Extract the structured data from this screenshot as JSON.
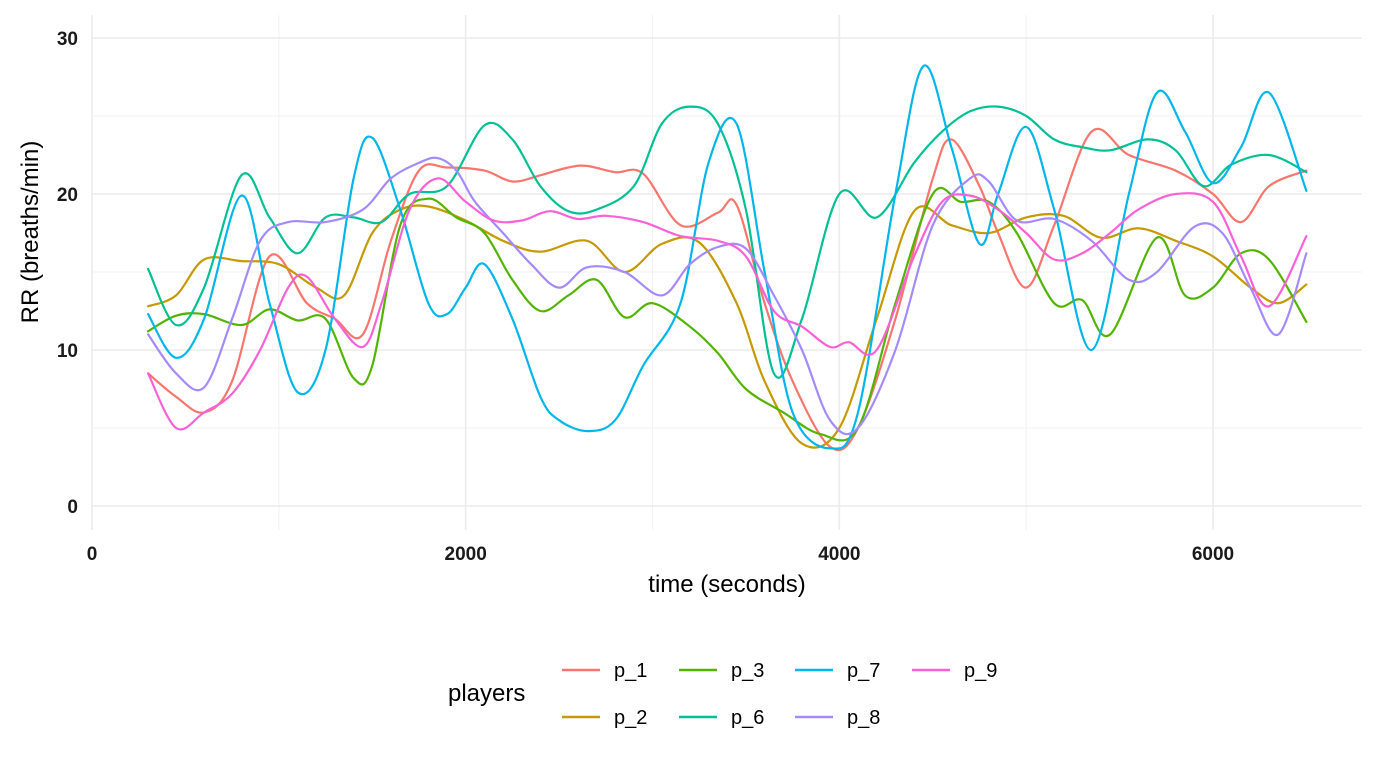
{
  "chart_data": {
    "type": "line",
    "title": "",
    "xlabel": "time (seconds)",
    "ylabel": "RR (breaths/min)",
    "xlim": [
      0,
      6800
    ],
    "ylim": [
      0,
      30
    ],
    "x_ticks": [
      0,
      2000,
      4000,
      6000
    ],
    "y_ticks": [
      0,
      10,
      20,
      30
    ],
    "grid": true,
    "legend": {
      "title": "players",
      "position": "bottom"
    },
    "series": [
      {
        "name": "p_1",
        "color": "#F8766D",
        "x": [
          300,
          450,
          600,
          750,
          950,
          1150,
          1300,
          1450,
          1600,
          1750,
          1900,
          2100,
          2250,
          2400,
          2550,
          2650,
          2800,
          2950,
          3150,
          3350,
          3450,
          3600,
          3750,
          3950,
          4100,
          4300,
          4500,
          4600,
          4750,
          4850,
          5000,
          5150,
          5350,
          5550,
          5800,
          6000,
          6150,
          6300,
          6500
        ],
        "y": [
          8.5,
          7,
          6,
          8,
          16,
          13,
          12,
          11,
          17,
          21.5,
          21.7,
          21.5,
          20.8,
          21.2,
          21.7,
          21.8,
          21.4,
          21.3,
          18,
          18.8,
          19.3,
          13,
          8,
          3.8,
          5,
          12,
          21,
          23.5,
          20.5,
          17.5,
          14,
          18,
          24,
          22.5,
          21.5,
          20,
          18.2,
          20.5,
          21.5
        ]
      },
      {
        "name": "p_2",
        "color": "#C49A00",
        "x": [
          300,
          450,
          600,
          800,
          1000,
          1200,
          1350,
          1500,
          1650,
          1800,
          2000,
          2200,
          2400,
          2650,
          2850,
          3050,
          3250,
          3450,
          3600,
          3800,
          4000,
          4200,
          4400,
          4600,
          4800,
          5000,
          5200,
          5400,
          5600,
          5800,
          6000,
          6200,
          6350,
          6500
        ],
        "y": [
          12.8,
          13.5,
          15.8,
          15.7,
          15.5,
          14,
          13.5,
          17.5,
          19,
          19.2,
          18.3,
          17,
          16.3,
          17,
          15,
          16.8,
          16.9,
          13,
          8,
          4,
          5,
          12,
          18.9,
          18,
          17.5,
          18.5,
          18.6,
          17.2,
          17.8,
          17,
          16,
          14,
          13,
          14.2
        ]
      },
      {
        "name": "p_3",
        "color": "#53B400",
        "x": [
          300,
          450,
          600,
          800,
          950,
          1100,
          1250,
          1400,
          1500,
          1650,
          1800,
          1950,
          2100,
          2250,
          2400,
          2550,
          2700,
          2850,
          3000,
          3200,
          3350,
          3500,
          3700,
          3900,
          4100,
          4300,
          4500,
          4650,
          4800,
          4950,
          5150,
          5300,
          5450,
          5700,
          5850,
          6000,
          6150,
          6300,
          6500
        ],
        "y": [
          11.2,
          12.2,
          12.3,
          11.6,
          12.6,
          11.9,
          12,
          8.2,
          9,
          18,
          19.7,
          18.5,
          17.5,
          14.5,
          12.5,
          13.5,
          14.5,
          12.1,
          13,
          11.5,
          9.8,
          7.5,
          6,
          4.6,
          5,
          13,
          20,
          19.5,
          19.5,
          17.5,
          13,
          13.2,
          11,
          17.2,
          13.5,
          14,
          16.2,
          15.8,
          11.8
        ]
      },
      {
        "name": "p_6",
        "color": "#00C094",
        "x": [
          300,
          450,
          600,
          800,
          950,
          1100,
          1250,
          1400,
          1550,
          1700,
          1900,
          2100,
          2250,
          2400,
          2550,
          2700,
          2900,
          3050,
          3200,
          3350,
          3500,
          3650,
          3800,
          4000,
          4200,
          4400,
          4550,
          4700,
          4850,
          5000,
          5150,
          5300,
          5450,
          5650,
          5800,
          5950,
          6100,
          6300,
          6500
        ],
        "y": [
          15.2,
          11.6,
          14,
          21.2,
          18.5,
          16.2,
          18.5,
          18.5,
          18.2,
          20,
          20.5,
          24.4,
          23.5,
          20.5,
          18.9,
          19,
          20.5,
          24.5,
          25.6,
          24.5,
          19,
          8.5,
          12,
          20,
          18.5,
          22,
          24,
          25.3,
          25.6,
          25,
          23.5,
          23,
          22.8,
          23.5,
          22.8,
          20.5,
          21.9,
          22.5,
          21.4
        ]
      },
      {
        "name": "p_7",
        "color": "#00B6EB",
        "x": [
          300,
          450,
          600,
          800,
          950,
          1100,
          1250,
          1400,
          1500,
          1650,
          1800,
          1900,
          2000,
          2100,
          2250,
          2400,
          2500,
          2650,
          2800,
          2950,
          3150,
          3300,
          3450,
          3600,
          3750,
          3950,
          4100,
          4300,
          4450,
          4600,
          4750,
          4850,
          5000,
          5150,
          5350,
          5550,
          5700,
          5850,
          6000,
          6150,
          6300,
          6500
        ],
        "y": [
          12.3,
          9.5,
          12,
          19.9,
          13,
          7.3,
          10,
          21,
          23.6,
          19,
          13,
          12.3,
          14,
          15.5,
          12,
          7,
          5.5,
          4.8,
          5.5,
          9,
          13,
          22,
          24.5,
          15,
          6,
          3.7,
          6,
          20,
          28.2,
          23,
          16.8,
          20,
          24.3,
          19,
          10,
          20,
          26.5,
          24,
          20.7,
          23,
          26.5,
          20.2
        ]
      },
      {
        "name": "p_8",
        "color": "#A58AFF",
        "x": [
          300,
          450,
          600,
          750,
          900,
          1050,
          1250,
          1450,
          1600,
          1750,
          1850,
          1950,
          2050,
          2200,
          2350,
          2500,
          2650,
          2850,
          3050,
          3200,
          3350,
          3500,
          3650,
          3800,
          3950,
          4100,
          4300,
          4500,
          4700,
          4800,
          4950,
          5150,
          5350,
          5550,
          5700,
          5900,
          6050,
          6200,
          6350,
          6500
        ],
        "y": [
          11,
          8.5,
          7.6,
          12,
          17,
          18.2,
          18.2,
          19,
          21,
          22,
          22.3,
          21.5,
          19.5,
          17.5,
          15.5,
          14,
          15.3,
          15,
          13.5,
          15.5,
          16.6,
          16.5,
          13.5,
          10,
          5.5,
          5,
          10,
          18,
          21,
          20.8,
          18.3,
          18.4,
          17,
          14.5,
          15,
          17.9,
          17.5,
          14,
          11,
          16.2
        ]
      },
      {
        "name": "p_9",
        "color": "#FB61D7",
        "x": [
          300,
          450,
          600,
          750,
          900,
          1050,
          1150,
          1300,
          1450,
          1550,
          1700,
          1850,
          2000,
          2150,
          2300,
          2450,
          2600,
          2750,
          2950,
          3150,
          3350,
          3500,
          3650,
          3800,
          3950,
          4050,
          4200,
          4400,
          4550,
          4700,
          4850,
          5000,
          5150,
          5300,
          5450,
          5600,
          5800,
          6000,
          6150,
          6300,
          6500
        ],
        "y": [
          8.5,
          5,
          6,
          7.2,
          10,
          14,
          14.7,
          12,
          10.2,
          13,
          19,
          21,
          19.5,
          18.3,
          18.3,
          18.9,
          18.4,
          18.6,
          18.2,
          17.3,
          17,
          16,
          12.5,
          11.5,
          10.2,
          10.5,
          10,
          16,
          19.5,
          19.9,
          19,
          17.5,
          15.8,
          16.2,
          17.5,
          19,
          20,
          19.5,
          16,
          12.8,
          17.3
        ]
      }
    ]
  }
}
